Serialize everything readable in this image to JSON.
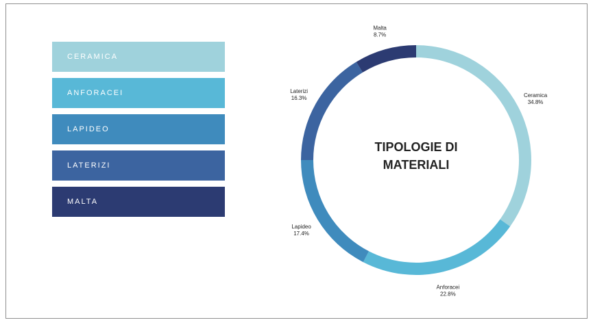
{
  "legend": {
    "items": [
      {
        "label": "CERAMICA",
        "color": "#9fd2dc"
      },
      {
        "label": "ANFORACEI",
        "color": "#58b8d7"
      },
      {
        "label": "LAPIDEO",
        "color": "#3f8bbd"
      },
      {
        "label": "LATERIZI",
        "color": "#3c64a0"
      },
      {
        "label": "MALTA",
        "color": "#2c3b72"
      }
    ]
  },
  "chart_data": {
    "type": "pie",
    "title_lines": [
      "TIPOLOGIE DI",
      "MATERIALI"
    ],
    "categories": [
      "Ceramica",
      "Anforacei",
      "Lapideo",
      "Laterizi",
      "Malta"
    ],
    "values": [
      34.8,
      22.8,
      17.4,
      16.3,
      8.7
    ],
    "value_labels": [
      "34.8%",
      "22.8%",
      "17.4%",
      "16.3%",
      "8.7%"
    ],
    "colors": [
      "#9fd2dc",
      "#58b8d7",
      "#3f8bbd",
      "#3c64a0",
      "#2c3b72"
    ],
    "legend_position": "left"
  }
}
